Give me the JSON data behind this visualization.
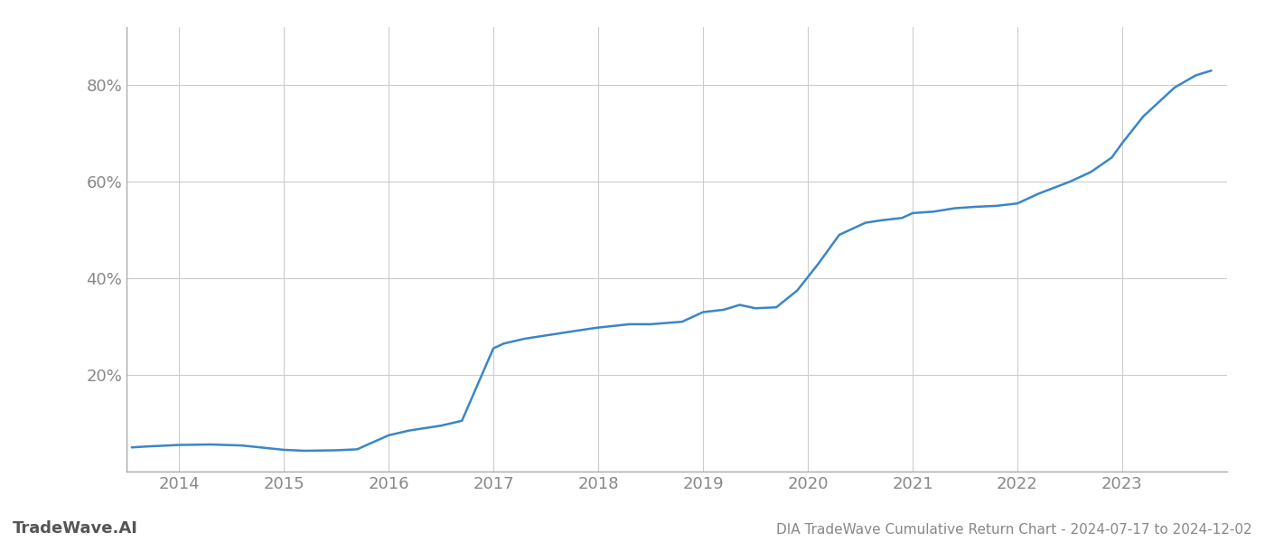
{
  "title": "DIA TradeWave Cumulative Return Chart - 2024-07-17 to 2024-12-02",
  "watermark": "TradeWave.AI",
  "line_color": "#3a86c8",
  "background_color": "#ffffff",
  "grid_color": "#cccccc",
  "x_years": [
    2014,
    2015,
    2016,
    2017,
    2018,
    2019,
    2020,
    2021,
    2022,
    2023
  ],
  "x_values": [
    2013.55,
    2013.7,
    2014.0,
    2014.3,
    2014.6,
    2015.0,
    2015.2,
    2015.5,
    2015.7,
    2016.0,
    2016.2,
    2016.5,
    2016.7,
    2017.0,
    2017.1,
    2017.3,
    2017.6,
    2017.9,
    2018.0,
    2018.3,
    2018.5,
    2018.8,
    2019.0,
    2019.2,
    2019.35,
    2019.5,
    2019.7,
    2019.9,
    2020.1,
    2020.3,
    2020.55,
    2020.7,
    2020.9,
    2021.0,
    2021.2,
    2021.4,
    2021.6,
    2021.8,
    2022.0,
    2022.2,
    2022.5,
    2022.7,
    2022.9,
    2023.0,
    2023.2,
    2023.5,
    2023.7,
    2023.85
  ],
  "y_values": [
    5.0,
    5.2,
    5.5,
    5.6,
    5.4,
    4.5,
    4.3,
    4.4,
    4.6,
    7.5,
    8.5,
    9.5,
    10.5,
    25.5,
    26.5,
    27.5,
    28.5,
    29.5,
    29.8,
    30.5,
    30.5,
    31.0,
    33.0,
    33.5,
    34.5,
    33.8,
    34.0,
    37.5,
    43.0,
    49.0,
    51.5,
    52.0,
    52.5,
    53.5,
    53.8,
    54.5,
    54.8,
    55.0,
    55.5,
    57.5,
    60.0,
    62.0,
    65.0,
    68.0,
    73.5,
    79.5,
    82.0,
    83.0
  ],
  "ylim": [
    0,
    92
  ],
  "xlim": [
    2013.5,
    2024.0
  ],
  "yticks": [
    20,
    40,
    60,
    80
  ],
  "ytick_labels": [
    "20%",
    "40%",
    "60%",
    "80%"
  ],
  "title_fontsize": 11,
  "tick_fontsize": 13,
  "watermark_fontsize": 13,
  "line_width": 1.8
}
